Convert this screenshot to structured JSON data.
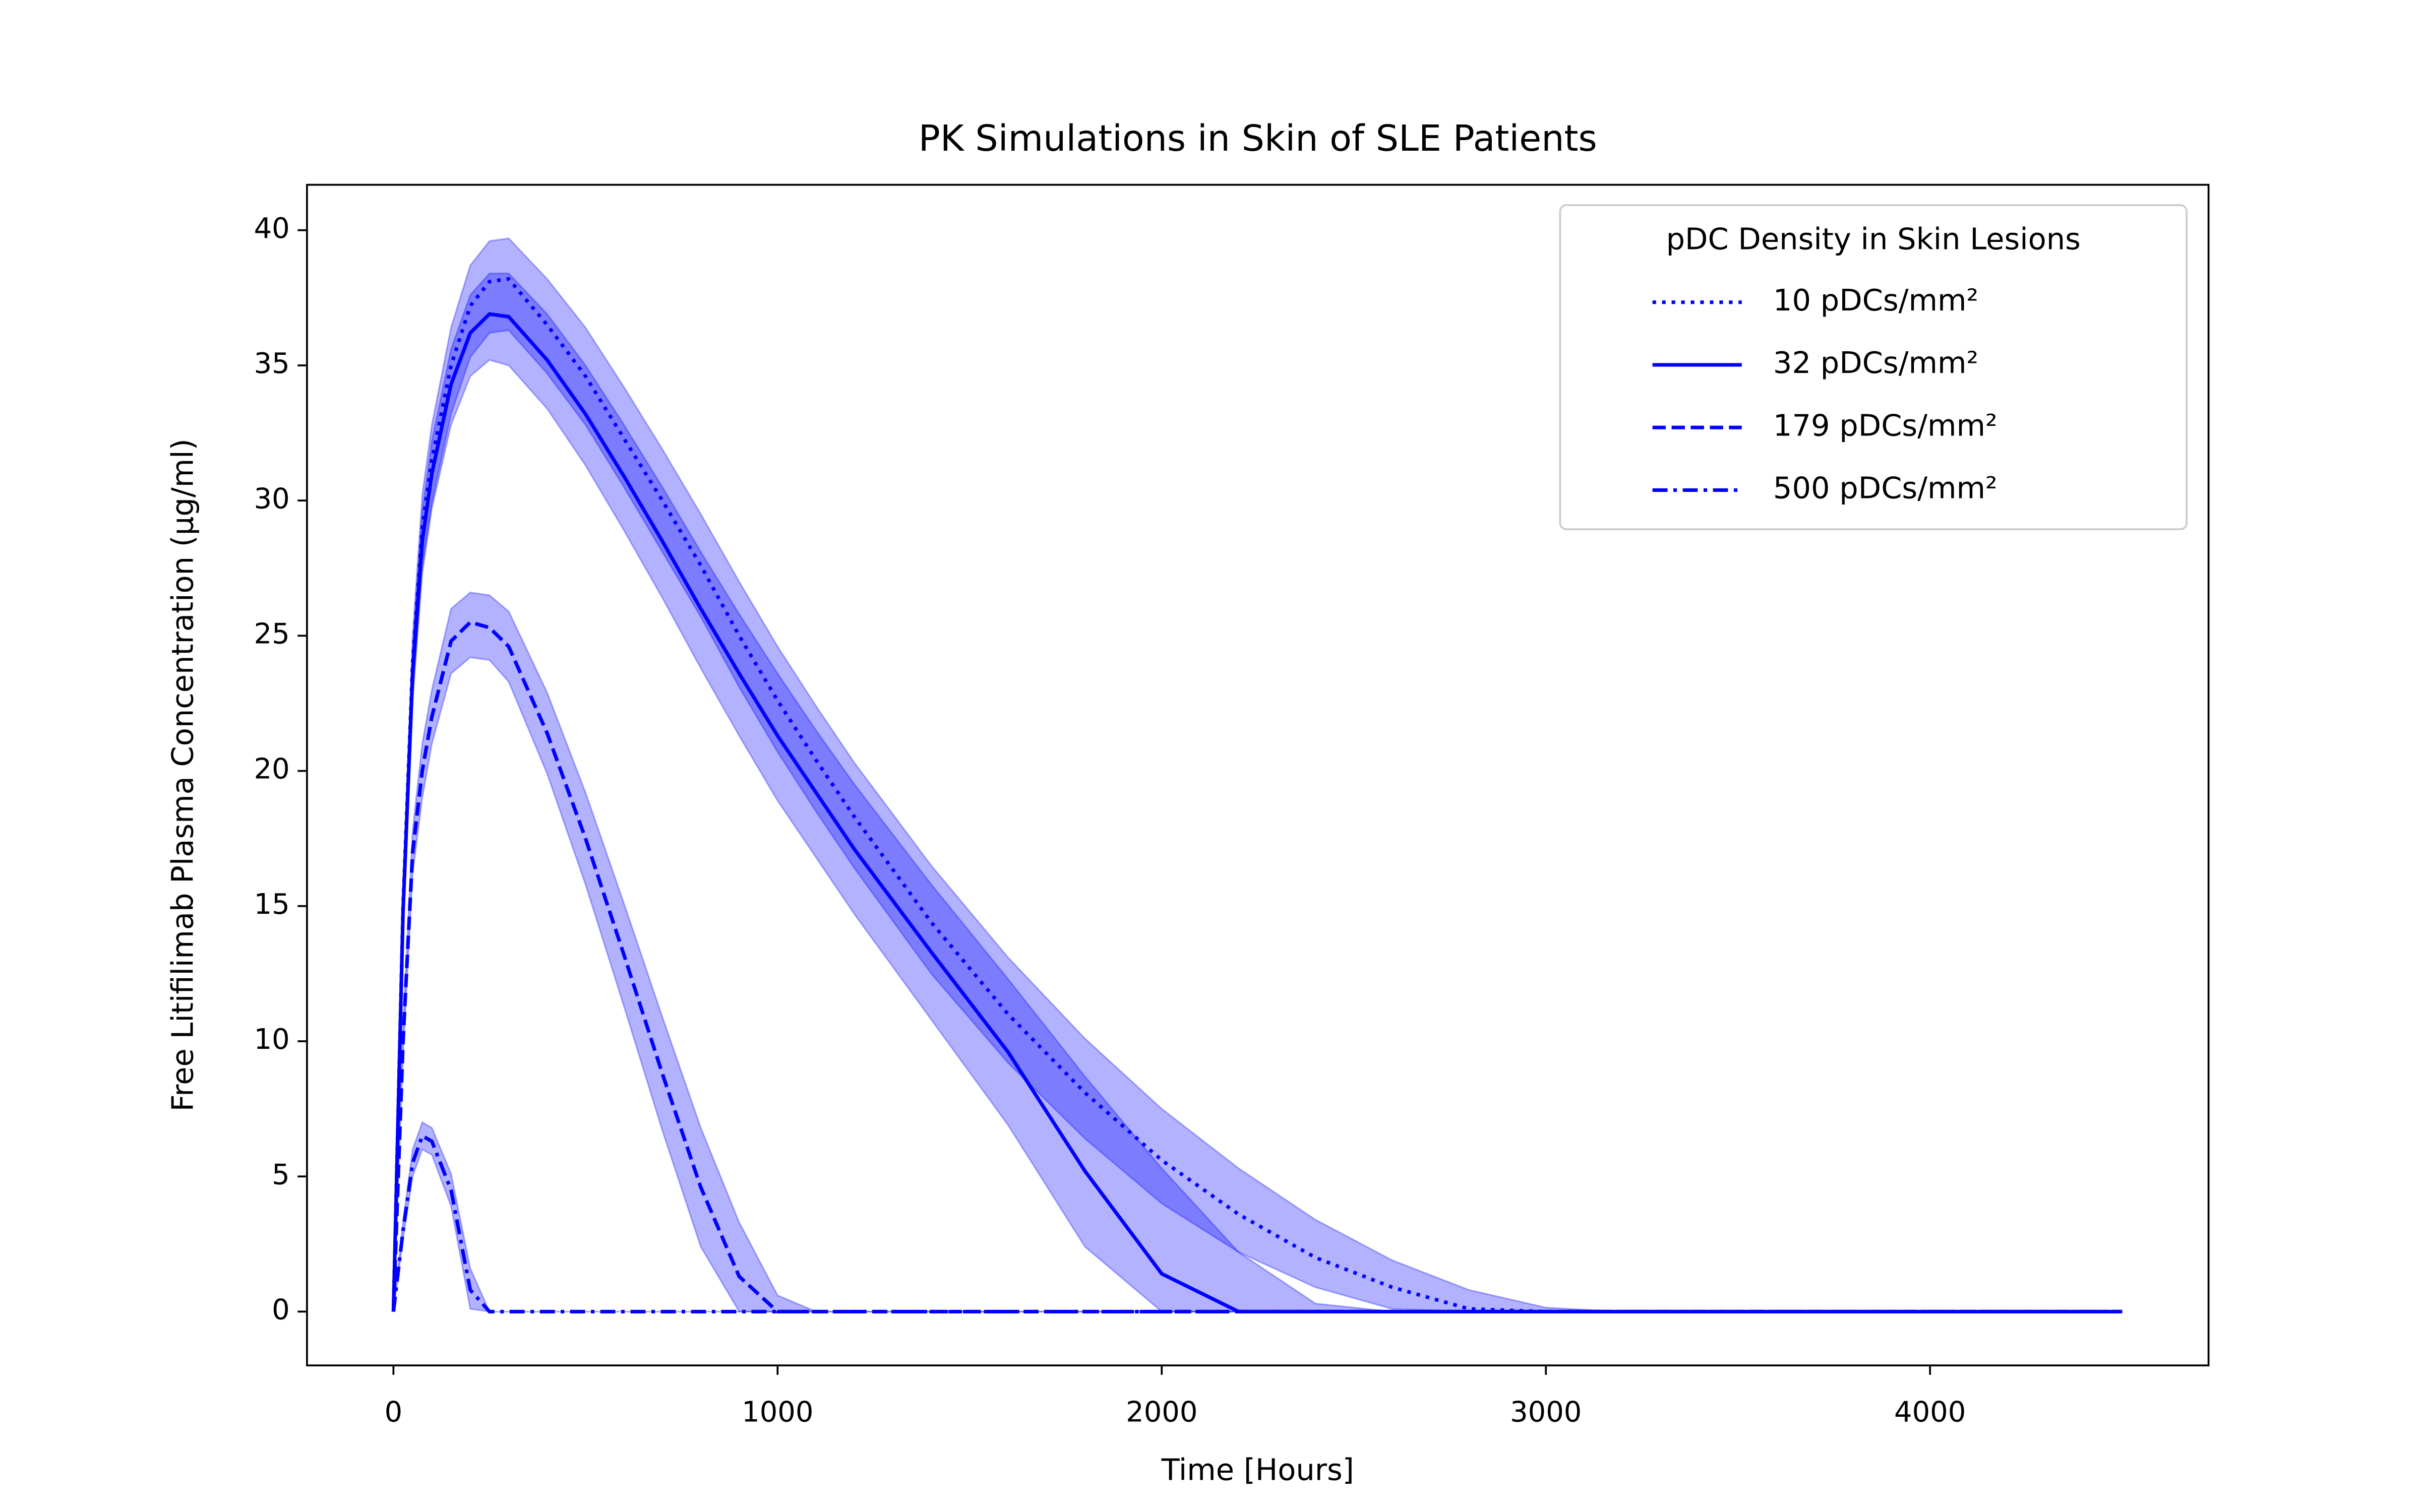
{
  "chart_data": {
    "type": "line",
    "title": "PK Simulations in Skin of SLE Patients",
    "x_label": "Time [Hours]",
    "y_label": "Free Litifilimab Plasma Concentration (μg/ml)",
    "legend_title": "pDC Density in Skin Lesions",
    "legend_loc": "upper right",
    "xlim": [
      -225,
      4725
    ],
    "ylim": [
      -1.99,
      41.68
    ],
    "xticks": [
      0,
      1000,
      2000,
      3000,
      4000
    ],
    "yticks": [
      0,
      5,
      10,
      15,
      20,
      25,
      30,
      35,
      40
    ],
    "x": [
      0,
      25,
      50,
      75,
      100,
      150,
      200,
      250,
      300,
      400,
      500,
      600,
      700,
      800,
      900,
      1000,
      1100,
      1200,
      1400,
      1600,
      1800,
      2000,
      2200,
      2400,
      2600,
      2800,
      3000,
      3200,
      4500
    ],
    "band_color": "#0000ff",
    "series": [
      {
        "name": "10 pDCs/mm²",
        "color": "#0000ff",
        "linestyle": "dotted",
        "values": [
          0,
          15,
          24,
          29,
          31.5,
          35,
          37.2,
          38.1,
          38.2,
          36.5,
          34.6,
          32.3,
          30.0,
          27.6,
          25.0,
          22.6,
          20.4,
          18.3,
          14.4,
          11.0,
          8.1,
          5.6,
          3.6,
          2.0,
          0.9,
          0.1,
          0,
          0,
          0
        ],
        "upper": [
          0,
          15.6,
          25,
          30.2,
          32.8,
          36.4,
          38.7,
          39.6,
          39.7,
          38.2,
          36.4,
          34.2,
          31.9,
          29.5,
          27.0,
          24.6,
          22.4,
          20.3,
          16.5,
          13.1,
          10.1,
          7.5,
          5.3,
          3.4,
          1.9,
          0.8,
          0.15,
          0,
          0
        ],
        "lower": [
          0,
          14.3,
          22.8,
          27.6,
          29.9,
          33.2,
          35.3,
          36.2,
          36.3,
          34.7,
          32.8,
          30.5,
          28.1,
          25.7,
          23.1,
          20.7,
          18.5,
          16.4,
          12.5,
          9.2,
          6.4,
          4.0,
          2.2,
          0.9,
          0.1,
          0,
          0,
          0,
          0
        ]
      },
      {
        "name": "32 pDCs/mm²",
        "color": "#0000ff",
        "linestyle": "solid",
        "values": [
          0,
          14.8,
          23.6,
          28.5,
          31,
          34.3,
          36.2,
          36.9,
          36.8,
          35.2,
          33.2,
          30.9,
          28.5,
          26.0,
          23.6,
          21.3,
          19.2,
          17.1,
          13.3,
          9.6,
          5.2,
          1.4,
          0,
          0,
          0,
          0,
          0,
          0,
          0
        ],
        "upper": [
          0,
          15.4,
          24.5,
          29.6,
          32.2,
          35.6,
          37.6,
          38.4,
          38.4,
          36.9,
          35.0,
          32.8,
          30.5,
          28.1,
          25.8,
          23.6,
          21.5,
          19.5,
          15.8,
          12.3,
          8.7,
          5.3,
          2.2,
          0.3,
          0,
          0,
          0,
          0,
          0
        ],
        "lower": [
          0,
          14.1,
          22.6,
          27.3,
          29.7,
          32.8,
          34.6,
          35.2,
          35.0,
          33.4,
          31.3,
          28.9,
          26.4,
          23.8,
          21.3,
          18.9,
          16.8,
          14.7,
          10.8,
          6.9,
          2.4,
          0,
          0,
          0,
          0,
          0,
          0,
          0,
          0
        ]
      },
      {
        "name": "179 pDCs/mm²",
        "color": "#0000ff",
        "linestyle": "dashed",
        "values": [
          0,
          10,
          17,
          20,
          22,
          24.8,
          25.5,
          25.3,
          24.6,
          21.4,
          17.5,
          13.2,
          8.8,
          4.6,
          1.3,
          0,
          0,
          0,
          0,
          0,
          0,
          0,
          0,
          0,
          0,
          0,
          0,
          0,
          0
        ],
        "upper": [
          0,
          10.5,
          17.8,
          21,
          23,
          26,
          26.6,
          26.5,
          25.9,
          22.9,
          19.2,
          15.1,
          10.9,
          6.8,
          3.3,
          0.6,
          0,
          0,
          0,
          0,
          0,
          0,
          0,
          0,
          0,
          0,
          0,
          0,
          0
        ],
        "lower": [
          0,
          9.5,
          16.2,
          19,
          21,
          23.6,
          24.2,
          24.1,
          23.3,
          19.9,
          15.8,
          11.3,
          6.7,
          2.4,
          0,
          0,
          0,
          0,
          0,
          0,
          0,
          0,
          0,
          0,
          0,
          0,
          0,
          0,
          0
        ]
      },
      {
        "name": "500 pDCs/mm²",
        "color": "#0000ff",
        "linestyle": "dashdot",
        "values": [
          0,
          3,
          5.5,
          6.5,
          6.3,
          4.5,
          0.8,
          0,
          0,
          0,
          0,
          0,
          0,
          0,
          0,
          0,
          0,
          0,
          0,
          0,
          0,
          0,
          0,
          0,
          0,
          0,
          0,
          0,
          0
        ],
        "upper": [
          0,
          3.3,
          6,
          7,
          6.8,
          5.1,
          1.6,
          0,
          0,
          0,
          0,
          0,
          0,
          0,
          0,
          0,
          0,
          0,
          0,
          0,
          0,
          0,
          0,
          0,
          0,
          0,
          0,
          0,
          0
        ],
        "lower": [
          0,
          2.7,
          5,
          6,
          5.8,
          3.9,
          0.1,
          0,
          0,
          0,
          0,
          0,
          0,
          0,
          0,
          0,
          0,
          0,
          0,
          0,
          0,
          0,
          0,
          0,
          0,
          0,
          0,
          0,
          0
        ]
      }
    ]
  }
}
